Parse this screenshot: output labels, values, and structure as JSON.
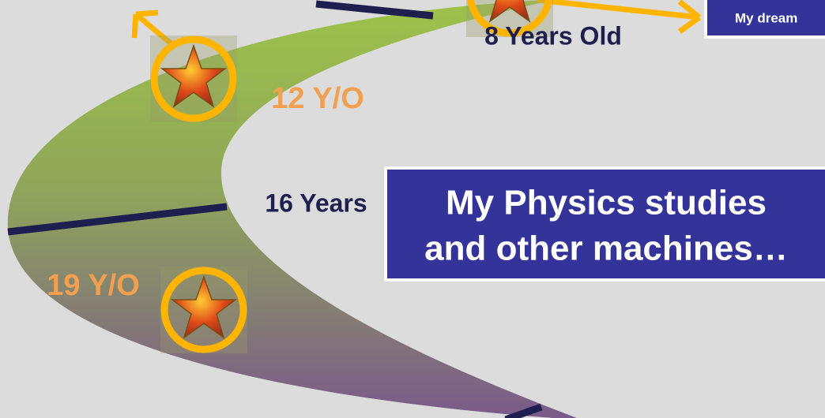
{
  "labels": {
    "age_8": "8 Years Old",
    "age_12": "12 Y/O",
    "age_16": "16 Years",
    "age_19": "19 Y/O"
  },
  "boxes": {
    "dream": "My dream",
    "physics": [
      "My Physics studies",
      "and other machines…"
    ]
  }
}
